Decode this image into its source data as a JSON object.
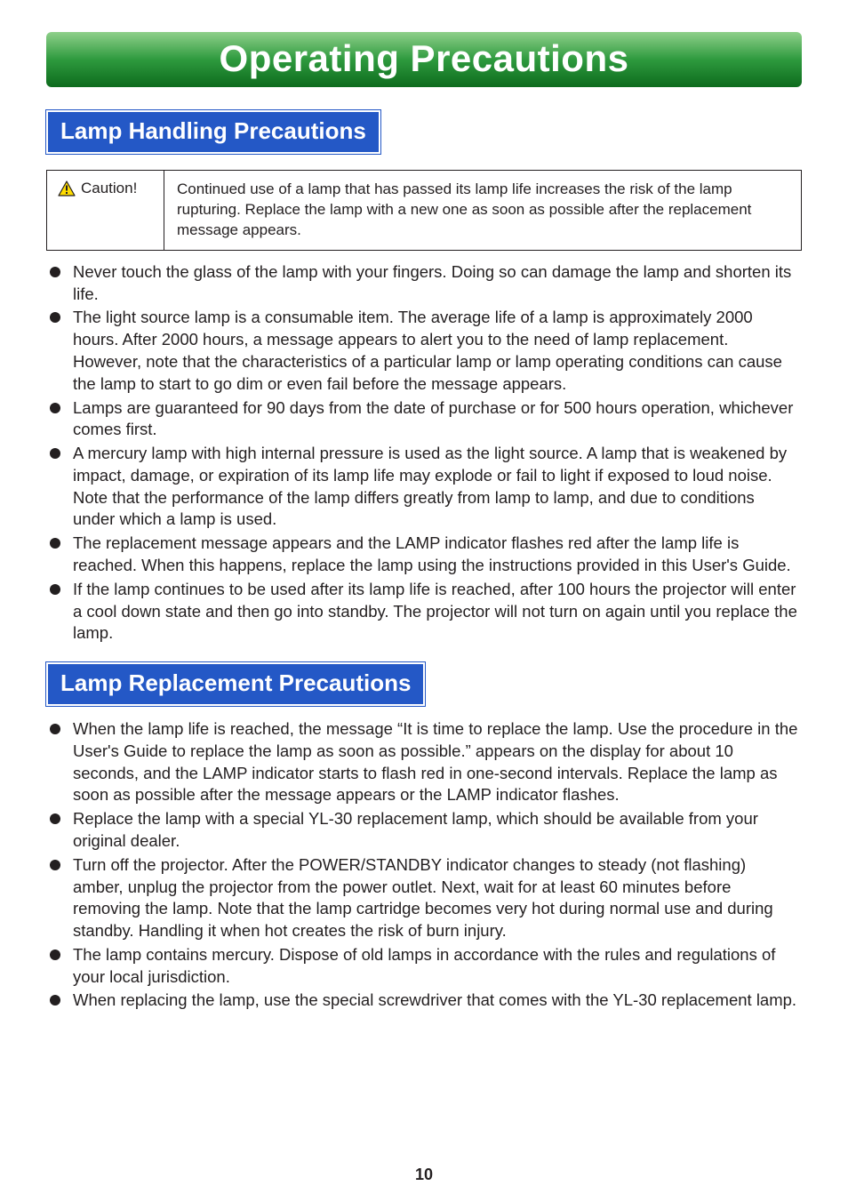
{
  "colors": {
    "title_gradient_top": "#8fd08a",
    "title_gradient_mid": "#2e9a3e",
    "title_gradient_bot": "#0d6b1d",
    "section_bg": "#2458c6",
    "text": "#231f20",
    "caution_triangle_fill": "#ffdc00",
    "caution_triangle_stroke": "#231f20"
  },
  "page_title": "Operating Precautions",
  "section1_title": "Lamp Handling Precautions",
  "caution_label": "Caution!",
  "caution_text": "Continued use of a lamp that has passed its lamp life increases the risk of the lamp rupturing. Replace the lamp with a new one as soon as possible after the replacement message appears.",
  "bullets1": [
    "Never touch the glass of the lamp with your fingers. Doing so can damage the lamp and shorten its life.",
    "The light source lamp is a consumable item. The average life of a lamp is approximately 2000 hours. After 2000 hours, a message appears to alert you to the need of lamp replacement. However, note that the characteristics of a particular lamp or lamp operating conditions can cause the lamp to start to go dim or even fail before the message appears.",
    "Lamps are guaranteed for 90 days from the date of purchase or for 500 hours operation, whichever comes first.",
    "A mercury lamp with high internal pressure is used as the light source. A lamp that is weakened by impact, damage, or expiration of its lamp life may explode or fail to light if exposed to loud noise. Note that the performance of the lamp differs greatly from lamp to lamp, and due to conditions under which a lamp is used.",
    "The replacement message appears and the LAMP indicator flashes red after the lamp life is reached. When this happens, replace the lamp using the instructions provided in this User's Guide.",
    "If the lamp continues to be used after its lamp life is reached, after 100 hours the projector will enter a cool down state and then go into standby. The projector will not turn on again until you replace the lamp."
  ],
  "section2_title": "Lamp Replacement Precautions",
  "bullets2": [
    "When the lamp life is reached, the message “It is time to replace the lamp. Use the procedure in the User's Guide to replace the lamp as soon as possible.” appears on the display for about 10 seconds, and the LAMP indicator starts to flash red in one-second intervals. Replace the lamp as soon as possible after the message appears or the LAMP indicator flashes.",
    "Replace the lamp with a special YL-30 replacement lamp, which should be available from your original dealer.",
    "Turn off the projector. After the POWER/STANDBY indicator changes to steady (not flashing) amber, unplug the projector from the power outlet. Next, wait for at least 60 minutes before removing the lamp. Note that the lamp cartridge becomes very hot during normal use and during standby. Handling it when hot creates the risk of burn injury.",
    "The lamp contains mercury. Dispose of old lamps in accordance with the rules and regulations of your local jurisdiction.",
    "When replacing the lamp, use the special screwdriver that comes with the YL-30 replacement lamp."
  ],
  "page_number": "10"
}
